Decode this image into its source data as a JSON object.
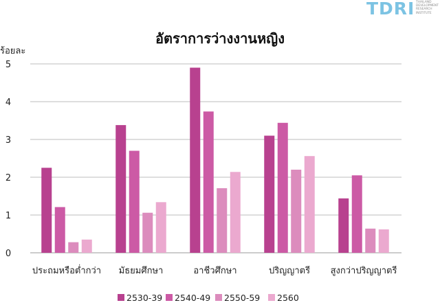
{
  "logo": {
    "name": "TDRI",
    "subtitle": "THAILAND\nDEVELOPMENT\nRESEARCH\nINSTITUTE"
  },
  "chart_data": {
    "type": "bar",
    "title": "อัตราการว่างงานหญิง",
    "xlabel": "",
    "ylabel": "ร้อยละ",
    "ylim": [
      0,
      5
    ],
    "yticks": [
      0,
      1,
      2,
      3,
      4,
      5
    ],
    "grid": true,
    "legend_position": "bottom",
    "categories": [
      "ประถมหรือต่ำกว่า",
      "มัธยมศึกษา",
      "อาชีวศึกษา",
      "ปริญญาตรี",
      "สูงกว่าปริญญาตรี"
    ],
    "series": [
      {
        "name": "2530-39",
        "color": "#b8418f",
        "values": [
          2.25,
          3.38,
          4.9,
          3.1,
          1.44
        ]
      },
      {
        "name": "2540-49",
        "color": "#cc5aa5",
        "values": [
          1.21,
          2.7,
          3.74,
          3.44,
          2.05
        ]
      },
      {
        "name": "2550-59",
        "color": "#dc8cbd",
        "values": [
          0.28,
          1.06,
          1.71,
          2.2,
          0.64
        ]
      },
      {
        "name": "2560",
        "color": "#eba9cf",
        "values": [
          0.35,
          1.34,
          2.14,
          2.56,
          0.62
        ]
      }
    ]
  }
}
